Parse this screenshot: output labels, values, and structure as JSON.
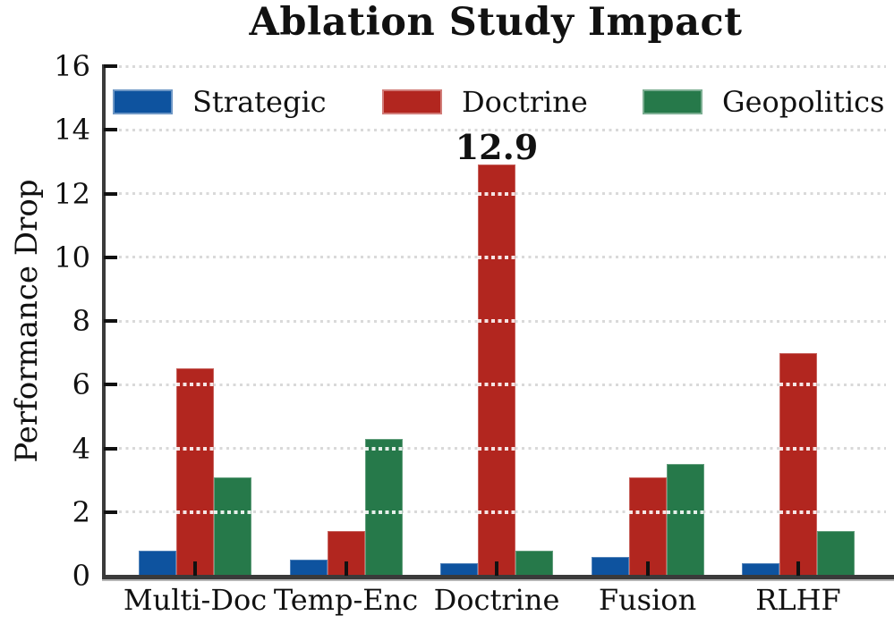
{
  "chart_data": {
    "type": "bar",
    "title": "Ablation Study Impact",
    "xlabel": "",
    "ylabel": "Performance Drop",
    "categories": [
      "Multi-Doc",
      "Temp-Enc",
      "Doctrine",
      "Fusion",
      "RLHF"
    ],
    "series": [
      {
        "name": "Strategic",
        "color": "#0e539f",
        "values": [
          0.8,
          0.5,
          0.4,
          0.6,
          0.4
        ]
      },
      {
        "name": "Doctrine",
        "color": "#b2261f",
        "values": [
          6.5,
          1.4,
          12.9,
          3.1,
          7.0
        ]
      },
      {
        "name": "Geopolitics",
        "color": "#26794a",
        "values": [
          3.1,
          4.3,
          0.8,
          3.5,
          1.4
        ]
      }
    ],
    "ylim": [
      0,
      16
    ],
    "yticks": [
      0,
      2,
      4,
      6,
      8,
      10,
      12,
      14,
      16
    ],
    "grid": "horizontal-dotted",
    "grid_over_bars": "white-dotted",
    "legend_position": "top-inside",
    "annotations": [
      {
        "text": "12.9",
        "series": "Doctrine",
        "category": "Doctrine",
        "value": 12.9
      }
    ]
  },
  "colors": {
    "background": "#ffffff",
    "axis": "#3a3a3a",
    "tick": "#111111",
    "grid": "#d9d9d9",
    "text": "#111111"
  }
}
